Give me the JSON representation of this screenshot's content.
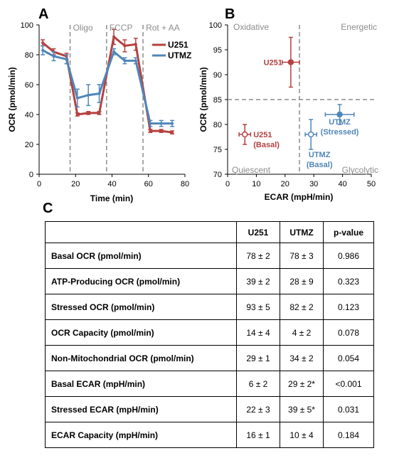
{
  "panels": {
    "a": "A",
    "b": "B",
    "c": "C"
  },
  "colors": {
    "u251": "#b5413f",
    "utmz": "#4f86b8",
    "phase_line": "#8c8c8c"
  },
  "chart_data": [
    {
      "type": "line",
      "xlabel": "Time (min)",
      "ylabel": "OCR (pmol/min)",
      "xlim": [
        0,
        80
      ],
      "ylim": [
        0,
        100
      ],
      "xticks": [
        "0",
        "20",
        "40",
        "60",
        "80"
      ],
      "yticks": [
        "0",
        "20",
        "40",
        "60",
        "80",
        "100"
      ],
      "phases": [
        {
          "label": "Oligo",
          "x": 17
        },
        {
          "label": "FCCP",
          "x": 37
        },
        {
          "label": "Rot + AA",
          "x": 57
        }
      ],
      "series": [
        {
          "name": "U251",
          "color": "#b5413f",
          "x": [
            2,
            8,
            15,
            21,
            27,
            33,
            41,
            47,
            53,
            61,
            67,
            73
          ],
          "y": [
            88,
            82,
            79,
            40,
            41,
            41,
            92,
            86,
            87,
            29,
            29,
            28
          ],
          "err": [
            2,
            2,
            2,
            1,
            1,
            1,
            5,
            4,
            4,
            1,
            1,
            1
          ]
        },
        {
          "name": "UTMZ",
          "color": "#4f86b8",
          "x": [
            2,
            8,
            15,
            21,
            27,
            33,
            41,
            47,
            53,
            61,
            67,
            73
          ],
          "y": [
            83,
            79,
            77,
            51,
            53,
            54,
            82,
            76,
            76,
            34,
            34,
            34
          ],
          "err": [
            3,
            3,
            3,
            6,
            7,
            6,
            2,
            2,
            2,
            2,
            2,
            2
          ]
        }
      ]
    },
    {
      "type": "scatter",
      "xlabel": "ECAR  (mpH/min)",
      "ylabel": "OCR  (pmol/min)",
      "xlim": [
        0,
        50
      ],
      "ylim": [
        70,
        100
      ],
      "xticks": [
        "0",
        "10",
        "20",
        "30",
        "40",
        "50"
      ],
      "yticks": [
        "70",
        "75",
        "80",
        "85",
        "90",
        "95",
        "100"
      ],
      "divider_x": 25,
      "divider_y": 85,
      "quadrants": {
        "top_left": "Oxidative",
        "top_right": "Energetic",
        "bottom_left": "Quiescent",
        "bottom_right": "Glycolytic"
      },
      "points": [
        {
          "label": "U251",
          "series": "U251",
          "x": 22,
          "y": 92.5,
          "xerr": 3,
          "yerr": 5,
          "filled": true,
          "color": "#b5413f"
        },
        {
          "label": "U251 (Basal)",
          "series": "U251",
          "x": 6,
          "y": 78,
          "xerr": 2,
          "yerr": 2,
          "filled": false,
          "color": "#b5413f"
        },
        {
          "label": "UTMZ (Basal)",
          "series": "UTMZ",
          "x": 29,
          "y": 78,
          "xerr": 2,
          "yerr": 3,
          "filled": false,
          "color": "#4f86b8"
        },
        {
          "label": "UTMZ (Stressed)",
          "series": "UTMZ",
          "x": 39,
          "y": 82,
          "xerr": 5,
          "yerr": 2,
          "filled": true,
          "color": "#4f86b8"
        }
      ]
    }
  ],
  "table": {
    "headers": [
      "",
      "U251",
      "UTMZ",
      "p-value"
    ],
    "rows": [
      [
        "Basal OCR (pmol/min)",
        "78 ± 2",
        "78 ± 3",
        "0.986"
      ],
      [
        "ATP-Producing OCR (pmol/min)",
        "39 ± 2",
        "28 ± 9",
        "0.323"
      ],
      [
        "Stressed OCR (pmol/min)",
        "93 ± 5",
        "82 ± 2",
        "0.123"
      ],
      [
        "OCR Capacity (pmol/min)",
        "14 ± 4",
        "4 ± 2",
        "0.078"
      ],
      [
        "Non-Mitochondrial OCR (pmol/min)",
        "29 ± 1",
        "34 ± 2",
        "0.054"
      ],
      [
        "Basal ECAR (mpH/min)",
        "6 ± 2",
        "29 ± 2*",
        "<0.001"
      ],
      [
        "Stressed ECAR (mpH/min)",
        "22 ± 3",
        "39 ± 5*",
        "0.031"
      ],
      [
        "ECAR Capacity (mpH/min)",
        "16 ± 1",
        "10 ± 4",
        "0.184"
      ]
    ]
  }
}
